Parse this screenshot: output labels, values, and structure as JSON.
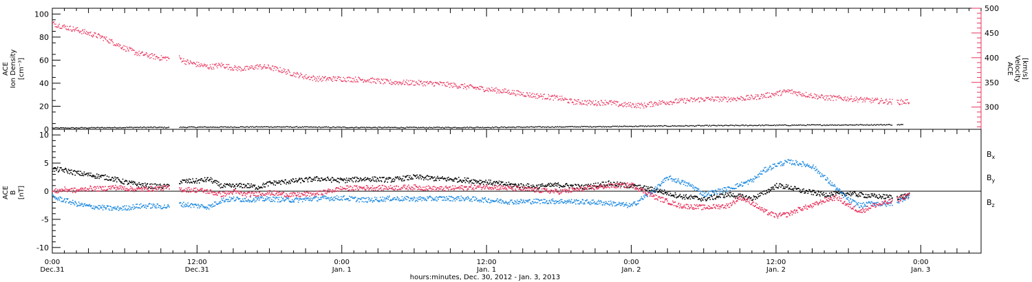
{
  "colors": {
    "black": "#000000",
    "red": "#e8305a",
    "blue": "#1f8ae0"
  },
  "chart_data": [
    {
      "type": "scatter",
      "panel": "plasma",
      "left_axis": {
        "label_lines": [
          "ACE",
          "Ion Density",
          "[cm⁻³]"
        ],
        "ylim": [
          0,
          105
        ],
        "ticks": [
          0,
          20,
          40,
          60,
          80,
          100
        ]
      },
      "right_axis": {
        "label_lines": [
          "ACE",
          "Velocity",
          "[km/s]"
        ],
        "ylim": [
          255,
          500
        ],
        "ticks": [
          300,
          350,
          400,
          450,
          500
        ],
        "color": "#e8305a"
      },
      "series": [
        {
          "axis": "left",
          "color": "#000000",
          "data": [
            [
              0.0,
              1.5
            ],
            [
              2.0,
              1.6
            ],
            [
              4.0,
              1.8
            ],
            [
              6.0,
              2.0
            ],
            [
              8.0,
              2.1
            ],
            [
              9.5,
              2.0
            ],
            [
              11.0,
              2.2
            ],
            [
              14.0,
              2.3
            ],
            [
              18.0,
              2.5
            ],
            [
              22.0,
              2.2
            ],
            [
              26.0,
              2.0
            ],
            [
              30.0,
              1.9
            ],
            [
              34.0,
              2.0
            ],
            [
              38.0,
              2.2
            ],
            [
              42.0,
              2.5
            ],
            [
              46.0,
              2.8
            ],
            [
              50.0,
              3.2
            ],
            [
              54.0,
              3.5
            ],
            [
              58.0,
              3.8
            ],
            [
              62.0,
              4.0
            ],
            [
              66.0,
              4.2
            ],
            [
              70.5,
              4.4
            ]
          ]
        },
        {
          "axis": "right",
          "color": "#e8305a",
          "data": [
            [
              0.0,
              470
            ],
            [
              1.0,
              463
            ],
            [
              2.0,
              457
            ],
            [
              3.0,
              450
            ],
            [
              4.0,
              443
            ],
            [
              5.0,
              432
            ],
            [
              6.0,
              420
            ],
            [
              7.0,
              410
            ],
            [
              8.0,
              405
            ],
            [
              9.0,
              400
            ],
            [
              10.5,
              400
            ],
            [
              11.0,
              393
            ],
            [
              12.0,
              387
            ],
            [
              13.0,
              382
            ],
            [
              14.0,
              386
            ],
            [
              15.0,
              380
            ],
            [
              16.0,
              378
            ],
            [
              17.0,
              383
            ],
            [
              18.0,
              381
            ],
            [
              19.0,
              375
            ],
            [
              20.0,
              368
            ],
            [
              21.0,
              362
            ],
            [
              22.0,
              358
            ],
            [
              24.0,
              358
            ],
            [
              26.0,
              356
            ],
            [
              28.0,
              351
            ],
            [
              30.0,
              350
            ],
            [
              32.0,
              348
            ],
            [
              34.0,
              343
            ],
            [
              36.0,
              337
            ],
            [
              38.0,
              331
            ],
            [
              40.0,
              324
            ],
            [
              42.0,
              319
            ],
            [
              43.0,
              312
            ],
            [
              45.0,
              309
            ],
            [
              46.0,
              311
            ],
            [
              47.0,
              306
            ],
            [
              48.0,
              305
            ],
            [
              49.0,
              304
            ],
            [
              50.0,
              309
            ],
            [
              52.0,
              313
            ],
            [
              54.0,
              317
            ],
            [
              56.0,
              317
            ],
            [
              58.0,
              320
            ],
            [
              60.0,
              328
            ],
            [
              61.0,
              333
            ],
            [
              62.0,
              328
            ],
            [
              64.0,
              320
            ],
            [
              66.0,
              318
            ],
            [
              68.0,
              314
            ],
            [
              70.0,
              311
            ],
            [
              71.0,
              312
            ]
          ]
        }
      ]
    },
    {
      "type": "scatter",
      "panel": "magnetic",
      "left_axis": {
        "label_lines": [
          "ACE",
          "B",
          "[nT]"
        ],
        "ylim": [
          -11,
          11
        ],
        "ticks": [
          -10,
          -5,
          0,
          5,
          10
        ]
      },
      "legend": [
        {
          "text": "B",
          "sub": "x",
          "color": "#000000"
        },
        {
          "text": "B",
          "sub": "y",
          "color": "#1f8ae0"
        },
        {
          "text": "B",
          "sub": "z",
          "color": "#e8305a"
        }
      ],
      "series": [
        {
          "name": "Bx",
          "color": "#000000",
          "data": [
            [
              0.0,
              4.0
            ],
            [
              1.0,
              3.8
            ],
            [
              2.0,
              3.3
            ],
            [
              3.0,
              3.0
            ],
            [
              4.0,
              2.7
            ],
            [
              5.0,
              2.3
            ],
            [
              6.0,
              1.7
            ],
            [
              7.0,
              1.3
            ],
            [
              8.0,
              1.0
            ],
            [
              9.5,
              0.9
            ],
            [
              10.5,
              1.8
            ],
            [
              12.0,
              1.9
            ],
            [
              13.0,
              2.2
            ],
            [
              14.0,
              1.0
            ],
            [
              15.0,
              1.0
            ],
            [
              16.0,
              1.1
            ],
            [
              17.0,
              0.8
            ],
            [
              18.0,
              1.5
            ],
            [
              20.0,
              1.9
            ],
            [
              22.0,
              2.3
            ],
            [
              24.0,
              2.0
            ],
            [
              26.0,
              2.3
            ],
            [
              28.0,
              2.1
            ],
            [
              30.0,
              2.6
            ],
            [
              32.0,
              2.3
            ],
            [
              34.0,
              2.1
            ],
            [
              36.0,
              1.7
            ],
            [
              38.0,
              1.2
            ],
            [
              40.0,
              0.9
            ],
            [
              42.0,
              1.2
            ],
            [
              44.0,
              0.8
            ],
            [
              46.0,
              1.5
            ],
            [
              48.0,
              1.0
            ],
            [
              50.0,
              0.3
            ],
            [
              52.0,
              -0.8
            ],
            [
              54.0,
              -1.3
            ],
            [
              56.0,
              -0.5
            ],
            [
              58.0,
              -1.2
            ],
            [
              59.0,
              -0.2
            ],
            [
              60.0,
              1.1
            ],
            [
              61.0,
              0.8
            ],
            [
              62.0,
              0.2
            ],
            [
              64.0,
              -0.5
            ],
            [
              66.0,
              -0.3
            ],
            [
              68.0,
              -0.8
            ],
            [
              70.0,
              -1.0
            ],
            [
              71.0,
              -0.6
            ]
          ]
        },
        {
          "name": "By",
          "color": "#1f8ae0",
          "data": [
            [
              0.0,
              -1.0
            ],
            [
              1.0,
              -1.5
            ],
            [
              2.0,
              -2.2
            ],
            [
              3.0,
              -2.6
            ],
            [
              4.0,
              -2.8
            ],
            [
              5.0,
              -3.0
            ],
            [
              6.0,
              -2.9
            ],
            [
              7.0,
              -2.6
            ],
            [
              8.0,
              -2.5
            ],
            [
              9.5,
              -2.7
            ],
            [
              10.5,
              -2.2
            ],
            [
              12.0,
              -2.5
            ],
            [
              13.0,
              -2.7
            ],
            [
              14.0,
              -1.5
            ],
            [
              15.0,
              -1.3
            ],
            [
              16.0,
              -1.4
            ],
            [
              18.0,
              -1.3
            ],
            [
              20.0,
              -1.5
            ],
            [
              22.0,
              -1.2
            ],
            [
              24.0,
              -1.1
            ],
            [
              26.0,
              -1.5
            ],
            [
              28.0,
              -1.2
            ],
            [
              30.0,
              -1.3
            ],
            [
              32.0,
              -1.2
            ],
            [
              34.0,
              -1.2
            ],
            [
              36.0,
              -1.5
            ],
            [
              38.0,
              -1.8
            ],
            [
              40.0,
              -1.7
            ],
            [
              42.0,
              -1.7
            ],
            [
              44.0,
              -1.8
            ],
            [
              46.0,
              -2.0
            ],
            [
              48.0,
              -2.5
            ],
            [
              50.0,
              0.5
            ],
            [
              51.0,
              2.5
            ],
            [
              52.0,
              1.8
            ],
            [
              53.0,
              1.0
            ],
            [
              54.0,
              -0.5
            ],
            [
              56.0,
              0.5
            ],
            [
              58.0,
              2.0
            ],
            [
              59.0,
              3.8
            ],
            [
              60.0,
              4.8
            ],
            [
              61.0,
              5.3
            ],
            [
              62.0,
              5.0
            ],
            [
              63.0,
              4.5
            ],
            [
              64.0,
              2.5
            ],
            [
              65.0,
              0.5
            ],
            [
              66.0,
              -1.5
            ],
            [
              67.0,
              -2.5
            ],
            [
              68.0,
              -2.0
            ],
            [
              69.0,
              -2.3
            ],
            [
              70.0,
              -1.8
            ],
            [
              71.0,
              -0.7
            ]
          ]
        },
        {
          "name": "Bz",
          "color": "#e8305a",
          "data": [
            [
              0.0,
              0.0
            ],
            [
              1.0,
              0.4
            ],
            [
              2.0,
              0.2
            ],
            [
              3.0,
              0.6
            ],
            [
              4.0,
              0.5
            ],
            [
              5.0,
              0.8
            ],
            [
              6.0,
              0.6
            ],
            [
              7.0,
              0.4
            ],
            [
              8.0,
              0.5
            ],
            [
              9.5,
              0.7
            ],
            [
              10.5,
              0.4
            ],
            [
              12.0,
              0.3
            ],
            [
              13.0,
              0.0
            ],
            [
              14.0,
              -0.5
            ],
            [
              15.0,
              0.0
            ],
            [
              16.0,
              -0.5
            ],
            [
              18.0,
              -0.2
            ],
            [
              20.0,
              -0.6
            ],
            [
              22.0,
              -0.3
            ],
            [
              24.0,
              0.6
            ],
            [
              26.0,
              0.7
            ],
            [
              28.0,
              0.7
            ],
            [
              30.0,
              0.8
            ],
            [
              32.0,
              0.5
            ],
            [
              34.0,
              0.7
            ],
            [
              36.0,
              0.9
            ],
            [
              38.0,
              0.6
            ],
            [
              40.0,
              0.3
            ],
            [
              42.0,
              0.0
            ],
            [
              44.0,
              0.5
            ],
            [
              46.0,
              1.0
            ],
            [
              48.0,
              1.2
            ],
            [
              50.0,
              -1.0
            ],
            [
              52.0,
              -2.5
            ],
            [
              54.0,
              -2.8
            ],
            [
              56.0,
              -2.5
            ],
            [
              57.0,
              -1.0
            ],
            [
              58.0,
              -2.0
            ],
            [
              59.0,
              -3.5
            ],
            [
              60.0,
              -4.3
            ],
            [
              61.0,
              -4.0
            ],
            [
              62.0,
              -3.0
            ],
            [
              63.0,
              -2.5
            ],
            [
              64.0,
              -1.5
            ],
            [
              65.0,
              -1.0
            ],
            [
              66.0,
              -2.5
            ],
            [
              67.0,
              -3.5
            ],
            [
              68.0,
              -2.5
            ],
            [
              69.0,
              -2.0
            ],
            [
              70.0,
              -1.5
            ],
            [
              71.0,
              -0.5
            ]
          ]
        }
      ]
    }
  ],
  "x_axis": {
    "unit": "hours since 00:00 Dec. 31, 2012",
    "xlim": [
      0,
      77
    ],
    "major_ticks": [
      {
        "h": 0,
        "time": "0:00",
        "date": "Dec.31"
      },
      {
        "h": 12,
        "time": "12:00",
        "date": "Dec.31"
      },
      {
        "h": 24,
        "time": "0:00",
        "date": "Jan. 1"
      },
      {
        "h": 36,
        "time": "12:00",
        "date": "Jan. 1"
      },
      {
        "h": 48,
        "time": "0:00",
        "date": "Jan. 2"
      },
      {
        "h": 60,
        "time": "12:00",
        "date": "Jan. 2"
      },
      {
        "h": 72,
        "time": "0:00",
        "date": "Jan. 3"
      }
    ],
    "xlabel": "hours:minutes, Dec. 30, 2012 - Jan.  3, 2013"
  }
}
